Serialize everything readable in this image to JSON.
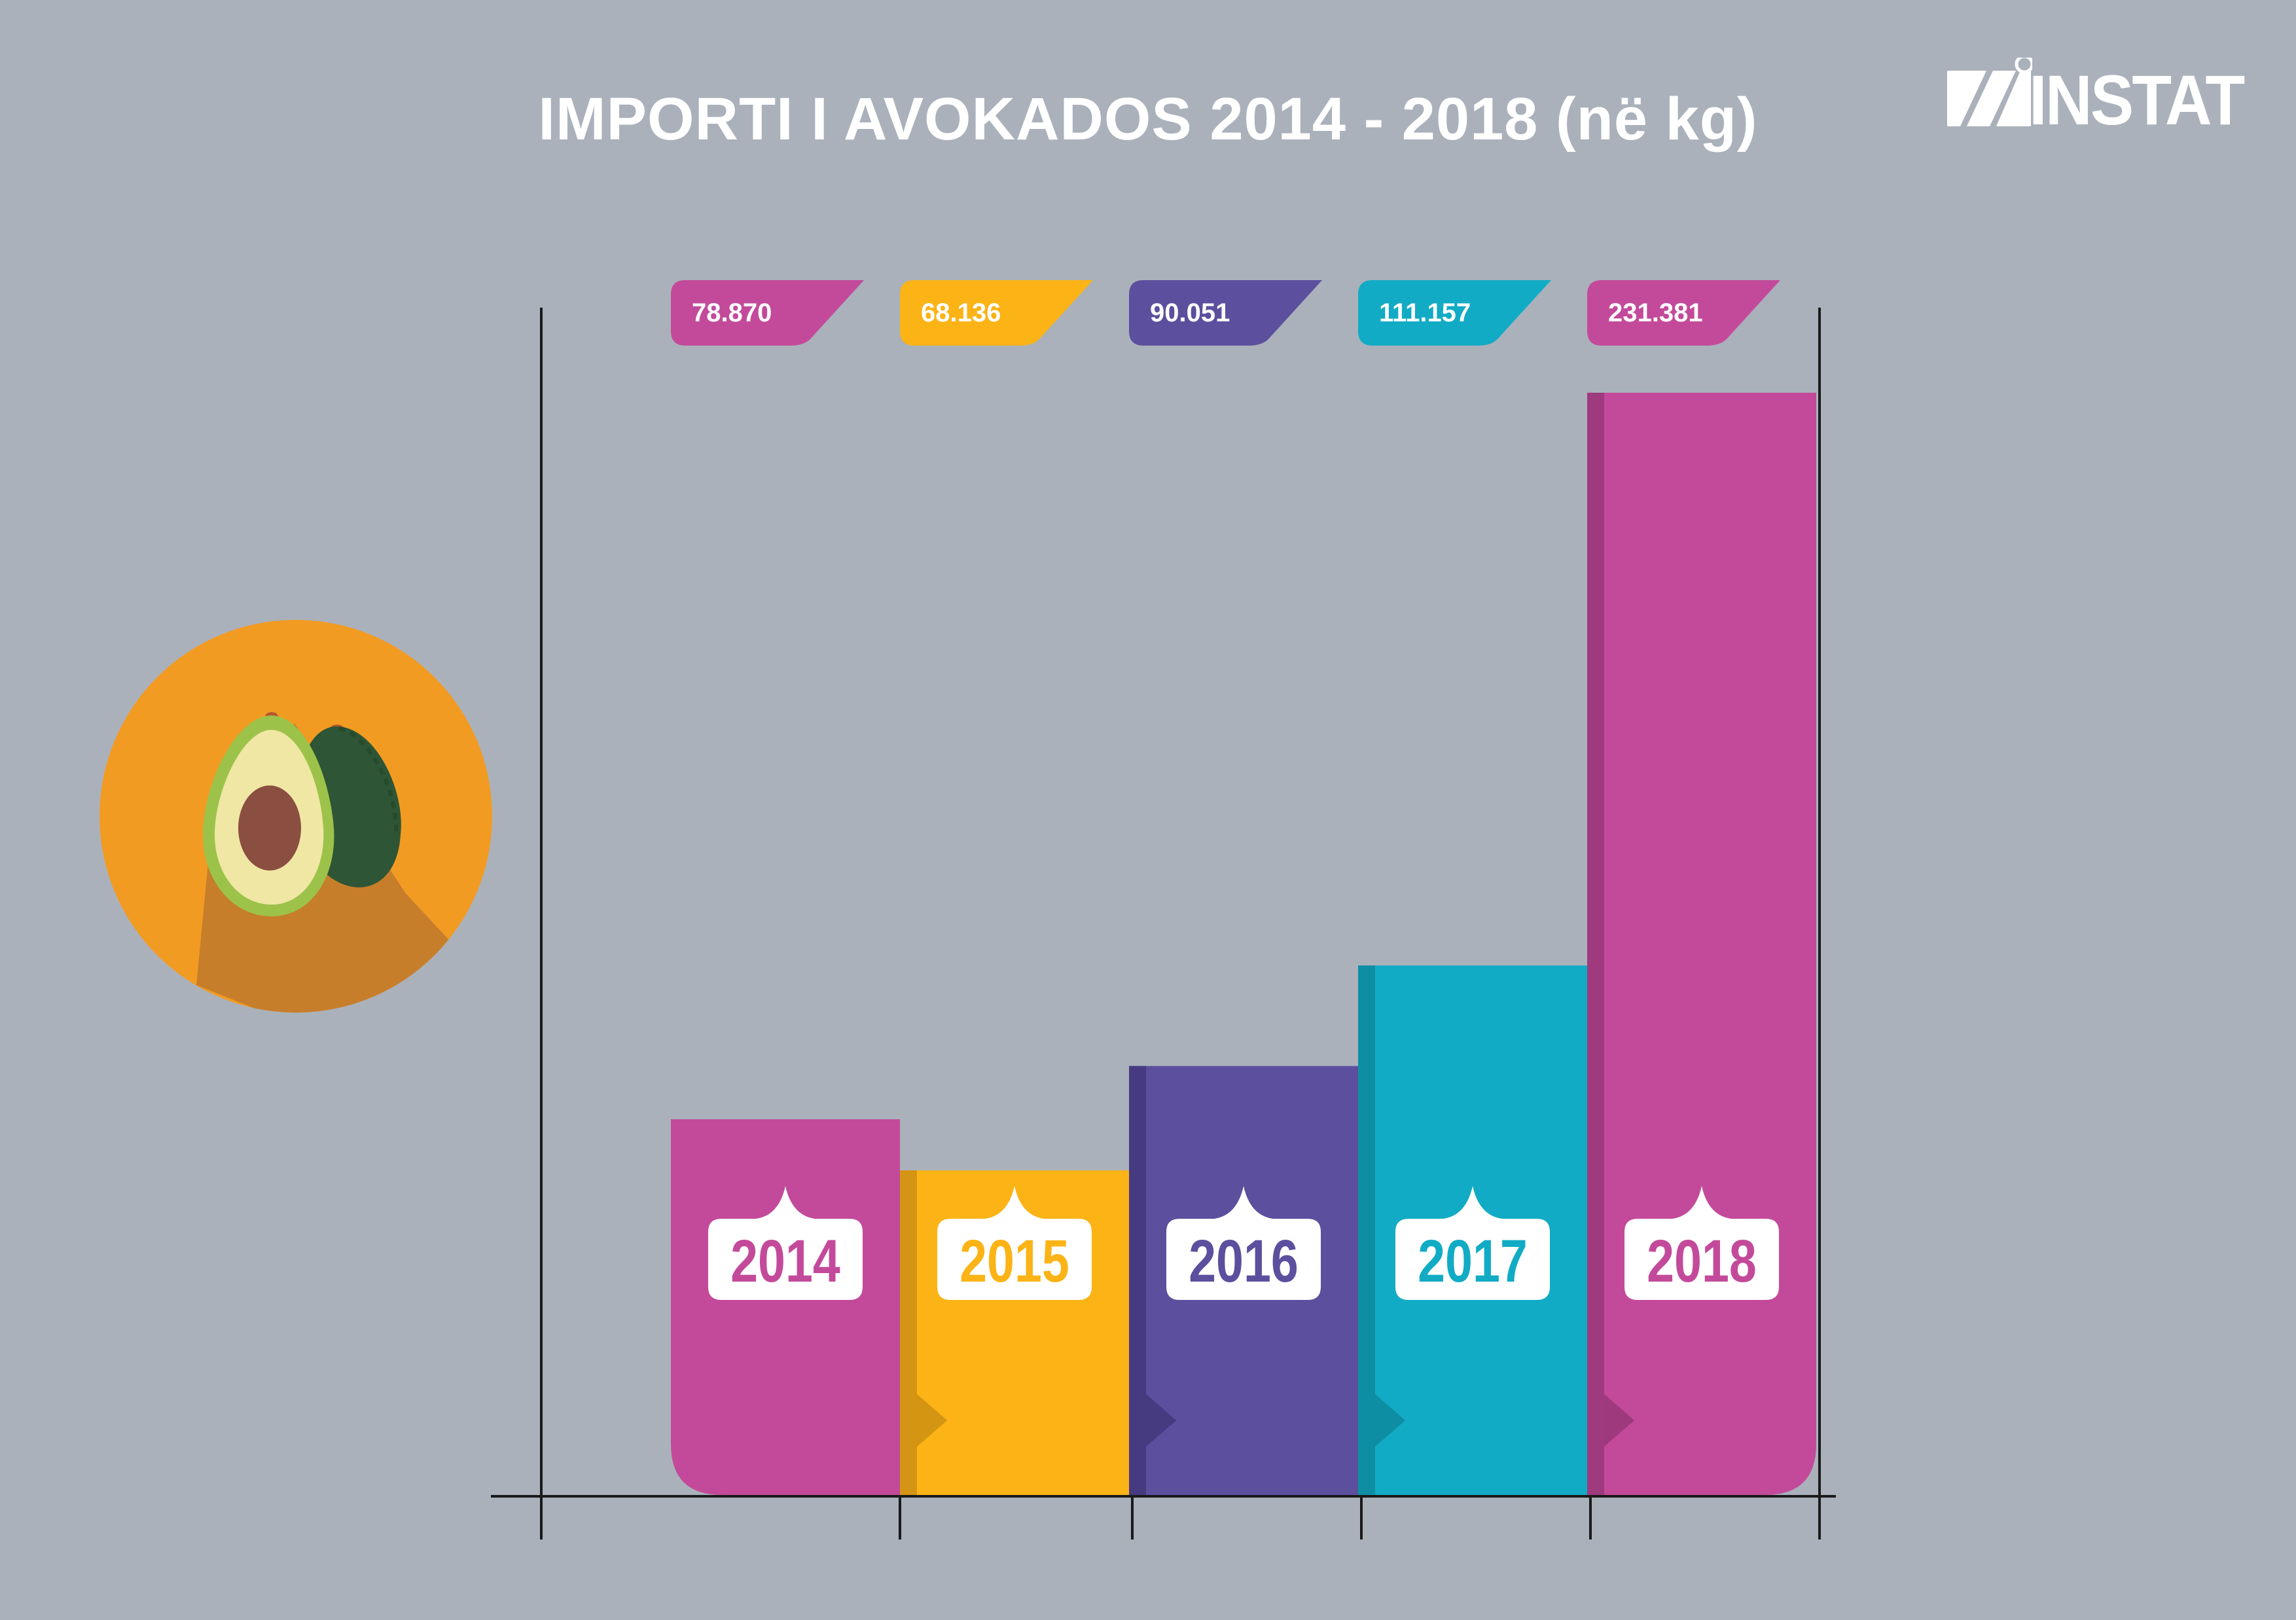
{
  "title": "IMPORTI I AVOKADOS 2014 - 2018 (në kg)",
  "logo_text": "INSTAT",
  "illustration": "avocado-icon",
  "colors": {
    "background": "#aab1bb",
    "magenta": "#c34a9a",
    "magenta_dark": "#9e3a7d",
    "yellow": "#fbb316",
    "yellow_dark": "#d39513",
    "purple": "#5c4f9e",
    "purple_dark": "#463b80",
    "teal": "#12abc5",
    "teal_dark": "#0e8ea3",
    "orange_circle": "#f29b22"
  },
  "chart_data": {
    "type": "bar",
    "categories": [
      "2014",
      "2015",
      "2016",
      "2017",
      "2018"
    ],
    "values": [
      78870,
      68136,
      90051,
      111157,
      231381
    ],
    "value_labels": [
      "78.870",
      "68.136",
      "90.051",
      "111.157",
      "231.381"
    ],
    "series_colors": [
      "#c34a9a",
      "#fbb316",
      "#5c4f9e",
      "#12abc5",
      "#c34a9a"
    ],
    "series_colors_dark": [
      "#9e3a7d",
      "#d39513",
      "#463b80",
      "#0e8ea3",
      "#9e3a7d"
    ],
    "title": "IMPORTI I AVOKADOS 2014 - 2018 (në kg)",
    "xlabel": "",
    "ylabel": "",
    "ylim": [
      0,
      231381
    ],
    "grid": false,
    "legend": "none"
  }
}
